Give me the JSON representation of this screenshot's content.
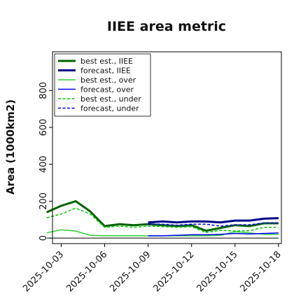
{
  "chart_data": {
    "type": "line",
    "title": "IIEE area metric",
    "xlabel": "",
    "ylabel": "Area (1000km2)",
    "x": [
      "2025-10-02",
      "2025-10-03",
      "2025-10-04",
      "2025-10-05",
      "2025-10-06",
      "2025-10-07",
      "2025-10-08",
      "2025-10-09",
      "2025-10-10",
      "2025-10-11",
      "2025-10-12",
      "2025-10-13",
      "2025-10-14",
      "2025-10-15",
      "2025-10-16",
      "2025-10-17",
      "2025-10-18"
    ],
    "x_tick_labels": [
      "2025-10-03",
      "2025-10-06",
      "2025-10-09",
      "2025-10-12",
      "2025-10-15",
      "2025-10-18"
    ],
    "highlighted_tick": "2025-10-09",
    "highlight_color": "#228b22",
    "ylim": [
      -30,
      1010
    ],
    "yticks": [
      0,
      200,
      400,
      600,
      800
    ],
    "grid": false,
    "legend_position": "top-left",
    "series": [
      {
        "name": "best est., IIEE",
        "color": "#006400",
        "style": "solid",
        "width": 3,
        "values": [
          140,
          175,
          200,
          145,
          65,
          75,
          70,
          75,
          70,
          65,
          70,
          40,
          55,
          70,
          65,
          80,
          80
        ]
      },
      {
        "name": "forecast, IIEE",
        "color": "#00008b",
        "style": "solid",
        "width": 3,
        "values": [
          null,
          null,
          null,
          null,
          null,
          null,
          null,
          85,
          90,
          85,
          90,
          90,
          85,
          95,
          95,
          105,
          108
        ]
      },
      {
        "name": "best est., over",
        "color": "#32cd32",
        "style": "solid",
        "width": 1.5,
        "values": [
          28,
          45,
          38,
          15,
          12,
          12,
          12,
          12,
          12,
          12,
          12,
          12,
          15,
          35,
          28,
          20,
          20
        ]
      },
      {
        "name": "forecast, over",
        "color": "#0000ff",
        "style": "solid",
        "width": 1.5,
        "values": [
          null,
          null,
          null,
          null,
          null,
          null,
          null,
          12,
          12,
          15,
          18,
          18,
          20,
          25,
          22,
          25,
          28
        ]
      },
      {
        "name": "best est., under",
        "color": "#00cc00",
        "style": "dashed",
        "width": 1.5,
        "values": [
          110,
          130,
          162,
          130,
          58,
          65,
          58,
          65,
          62,
          58,
          62,
          30,
          42,
          38,
          40,
          58,
          58
        ]
      },
      {
        "name": "forecast, under",
        "color": "#0000ff",
        "style": "dashed",
        "width": 1.5,
        "values": [
          null,
          null,
          null,
          null,
          null,
          null,
          null,
          75,
          75,
          70,
          75,
          75,
          65,
          72,
          72,
          82,
          82
        ]
      },
      {
        "name": "",
        "color": "#000000",
        "style": "solid",
        "width": 1,
        "values": [
          0,
          0,
          0,
          0,
          0,
          0,
          0,
          0,
          0,
          0,
          0,
          0,
          0,
          0,
          0,
          0,
          0
        ]
      }
    ]
  }
}
